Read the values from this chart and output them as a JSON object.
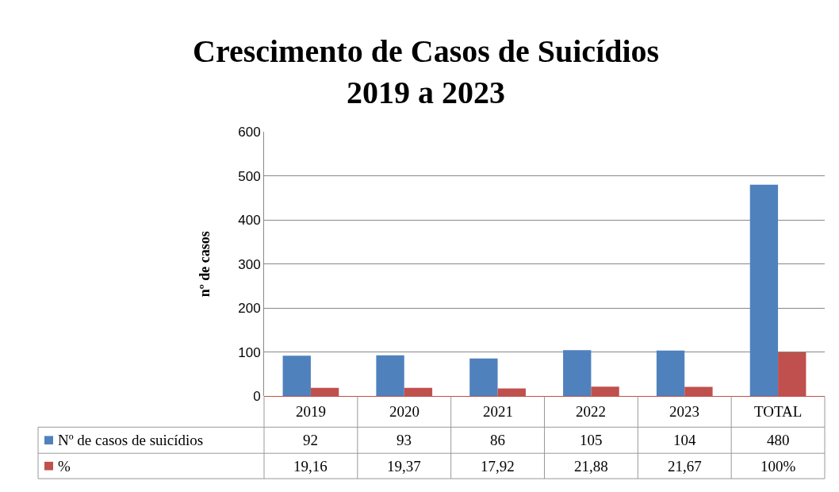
{
  "chart_data": {
    "type": "bar",
    "title": "Crescimento de Casos de Suicídios\n2019 a 2023",
    "ylabel": "nº de casos",
    "categories": [
      "2019",
      "2020",
      "2021",
      "2022",
      "2023",
      "TOTAL"
    ],
    "series": [
      {
        "name": "Nº de casos de suicídios",
        "color": "#4f81bd",
        "values": [
          92,
          93,
          86,
          105,
          104,
          480
        ],
        "value_labels": [
          "92",
          "93",
          "86",
          "105",
          "104",
          "480"
        ]
      },
      {
        "name": "%",
        "color": "#c0504d",
        "values": [
          19.16,
          19.37,
          17.92,
          21.88,
          21.67,
          100
        ],
        "value_labels": [
          "19,16",
          "19,37",
          "17,92",
          "21,88",
          "21,67",
          "100%"
        ]
      }
    ],
    "ylim": [
      0,
      600
    ],
    "yticks": [
      0,
      100,
      200,
      300,
      400,
      500,
      600
    ],
    "grid": "y",
    "legend": "bottom left"
  }
}
